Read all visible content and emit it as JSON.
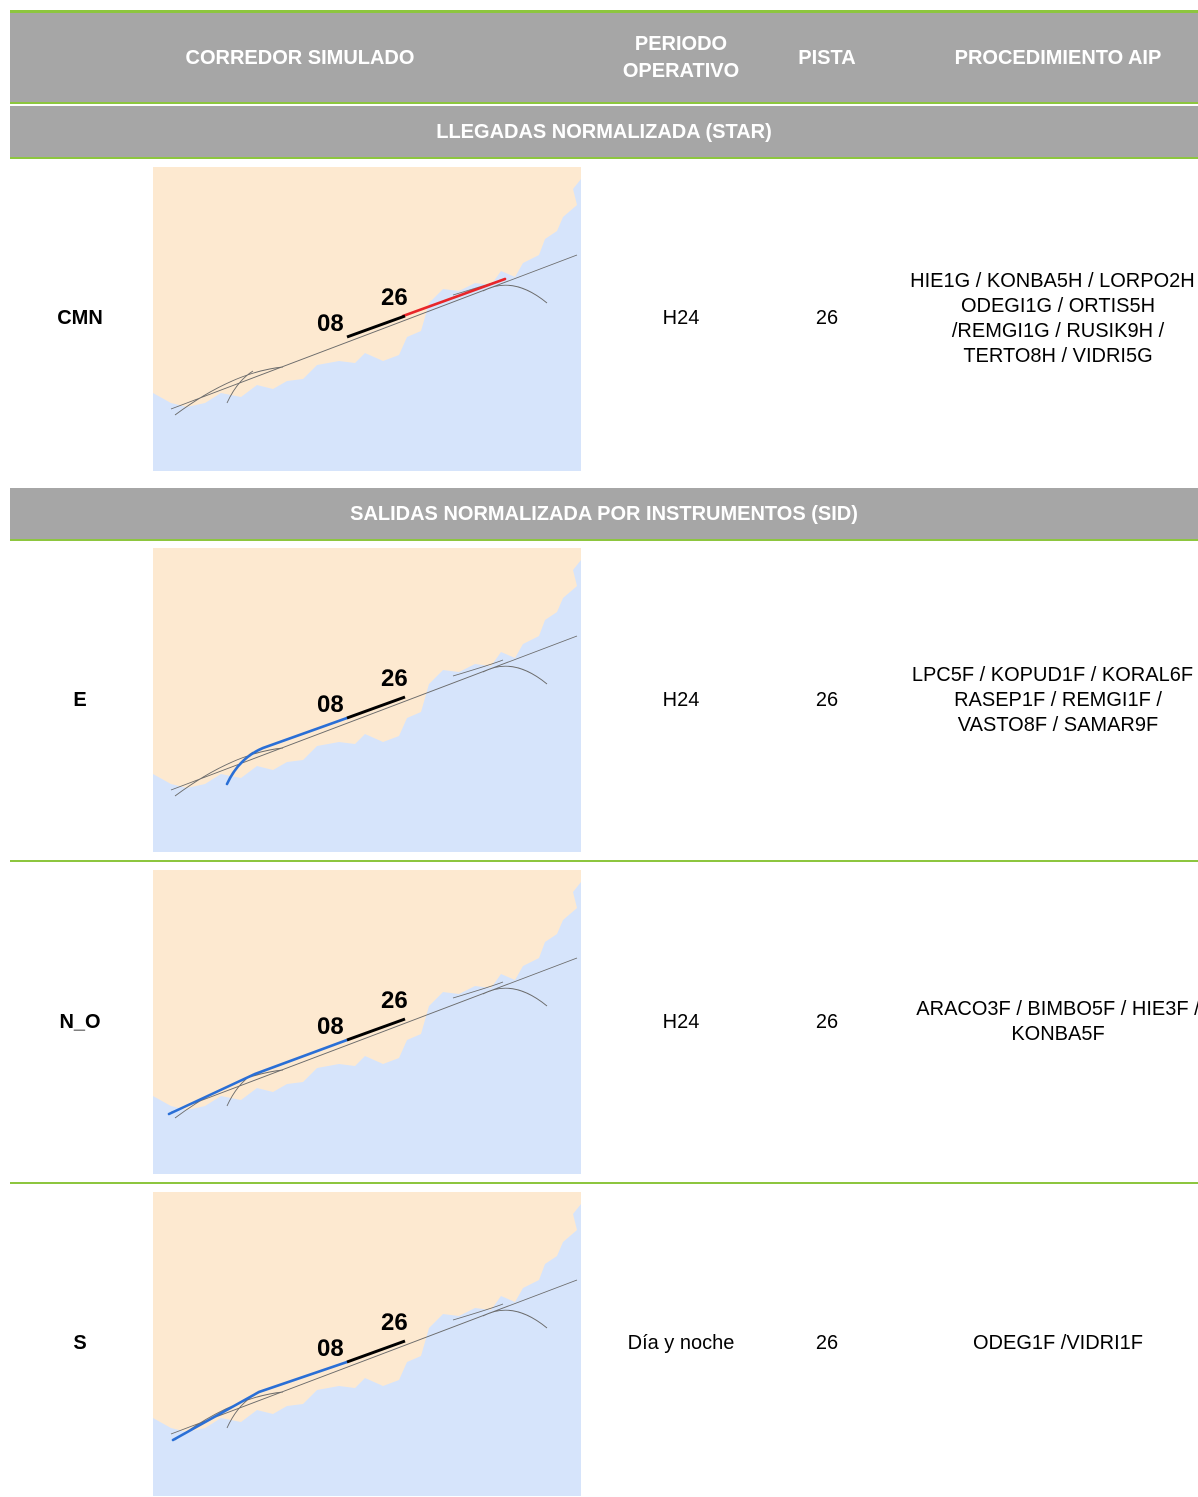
{
  "header": {
    "col1": "CORREDOR SIMULADO",
    "col2": "PERIODO OPERATIVO",
    "col3": "PISTA",
    "col4": "PROCEDIMIENTO AIP"
  },
  "sections": {
    "star": "LLEGADAS NORMALIZADA (STAR)",
    "sid": "SALIDAS NORMALIZADA POR INSTRUMENTOS (SID)"
  },
  "map_labels": {
    "rwy_a": "08",
    "rwy_b": "26"
  },
  "colors": {
    "header_bg": "#a6a6a6",
    "rule_green": "#8dc63f",
    "land": "#fde9d0",
    "sea": "#d6e4fb",
    "arrival_route": "#e8262a",
    "departure_route": "#2a6fd6",
    "runway": "#000000"
  },
  "rows": [
    {
      "corridor": "CMN",
      "period": "H24",
      "runway": "26",
      "procedure": "HIE1G / KONBA5H / LORPO2H / ODEGI1G / ORTIS5H /REMGI1G / RUSIK9H / TERTO8H / VIDRI5G",
      "route": "arrival"
    },
    {
      "corridor": "E",
      "period": "H24",
      "runway": "26",
      "procedure": "LPC5F / KOPUD1F / KORAL6F / RASEP1F / REMGI1F / VASTO8F / SAMAR9F",
      "route": "departure-east"
    },
    {
      "corridor": "N_O",
      "period": "H24",
      "runway": "26",
      "procedure": "ARACO3F / BIMBO5F / HIE3F / KONBA5F",
      "route": "departure-northwest"
    },
    {
      "corridor": "S",
      "period": "Día y noche",
      "runway": "26",
      "procedure": "ODEG1F /VIDRI1F",
      "route": "departure-south"
    }
  ]
}
